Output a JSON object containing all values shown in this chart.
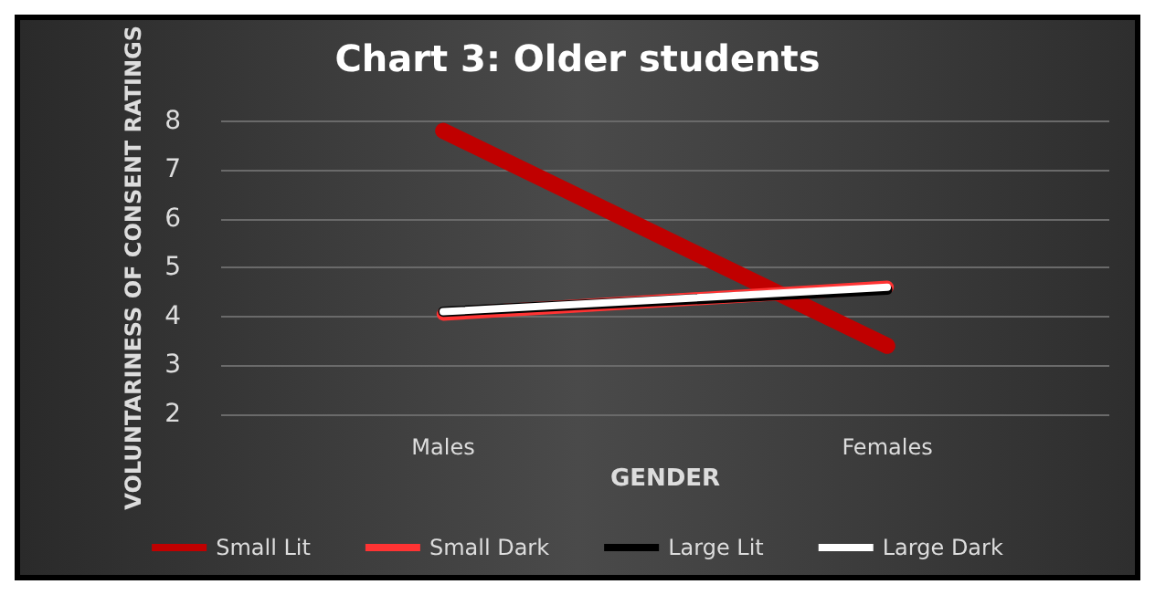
{
  "chart_data": {
    "type": "line",
    "title": "Chart 3: Older students",
    "xlabel": "GENDER",
    "ylabel": "VOLUNTARINESS OF CONSENT RATINGS",
    "categories": [
      "Males",
      "Females"
    ],
    "series": [
      {
        "name": "Small Lit",
        "color": "#c00000",
        "values": [
          7.8,
          3.4
        ]
      },
      {
        "name": "Small Dark",
        "color": "#ff3333",
        "values": [
          4.05,
          4.6
        ]
      },
      {
        "name": "Large Lit",
        "color": "#000000",
        "values": [
          4.1,
          4.55
        ]
      },
      {
        "name": "Large Dark",
        "color": "#ffffff",
        "values": [
          4.1,
          4.6
        ]
      }
    ],
    "ylim": [
      2,
      8
    ],
    "yticks": [
      2,
      3,
      4,
      5,
      6,
      7,
      8
    ],
    "grid": "y",
    "legend": "bottom",
    "marker": "none",
    "line_style": "solid"
  }
}
